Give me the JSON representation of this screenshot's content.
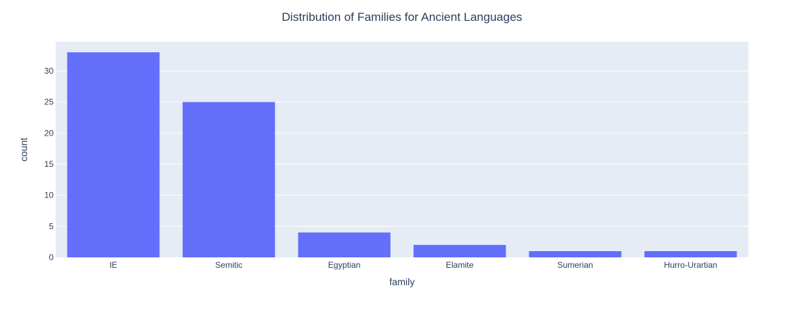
{
  "chart_data": {
    "type": "bar",
    "title": "Distribution of Families for Ancient Languages",
    "xlabel": "family",
    "ylabel": "count",
    "categories": [
      "IE",
      "Semitic",
      "Egyptian",
      "Elamite",
      "Sumerian",
      "Hurro-Urartian"
    ],
    "values": [
      33,
      25,
      4,
      2,
      1,
      1
    ],
    "ylim": [
      0,
      34.7
    ],
    "yticks": [
      0,
      5,
      10,
      15,
      20,
      25,
      30
    ],
    "grid": true,
    "legend": "none",
    "colors": {
      "bar": "#636efa",
      "plot_background": "#e5ecf6",
      "gridline": "#ffffff",
      "text": "#2a3f5f"
    }
  }
}
